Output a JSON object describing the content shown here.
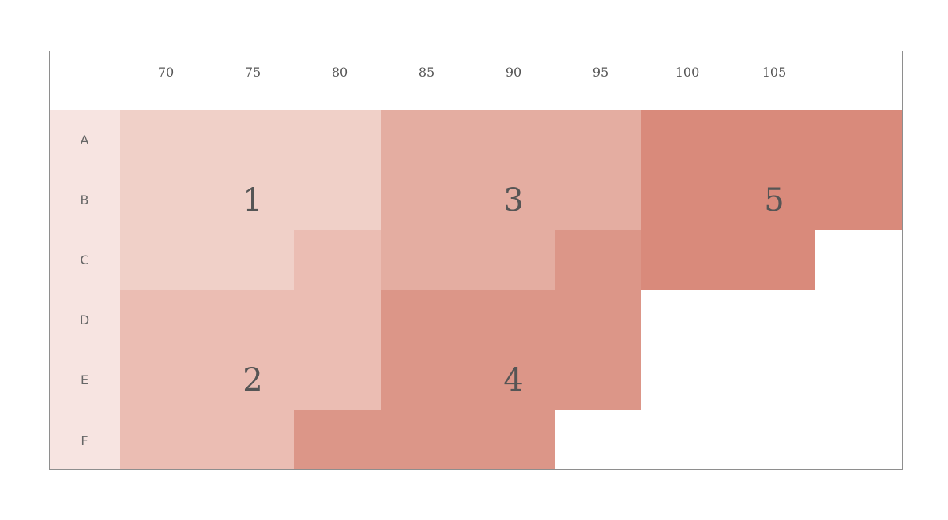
{
  "columns": [
    "70",
    "75",
    "80",
    "85",
    "90",
    "95",
    "100",
    "105"
  ],
  "rows": [
    "A",
    "B",
    "C",
    "D",
    "E",
    "F"
  ],
  "zones": [
    {
      "id": "1",
      "color": "#f0d0c8"
    },
    {
      "id": "2",
      "color": "#ebbdb3"
    },
    {
      "id": "3",
      "color": "#e4ada1"
    },
    {
      "id": "4",
      "color": "#dc9688"
    },
    {
      "id": "5",
      "color": "#d98a7b"
    }
  ],
  "cells": [
    {
      "row": "A",
      "start": 0,
      "end": 2,
      "zone": "1"
    },
    {
      "row": "A",
      "start": 3,
      "end": 5,
      "zone": "3"
    },
    {
      "row": "A",
      "start": 6,
      "end": 8,
      "zone": "5"
    },
    {
      "row": "B",
      "start": 0,
      "end": 2,
      "zone": "1"
    },
    {
      "row": "B",
      "start": 3,
      "end": 5,
      "zone": "3"
    },
    {
      "row": "B",
      "start": 6,
      "end": 8,
      "zone": "5"
    },
    {
      "row": "C",
      "start": 0,
      "end": 1,
      "zone": "1"
    },
    {
      "row": "C",
      "start": 2,
      "end": 2,
      "zone": "2"
    },
    {
      "row": "C",
      "start": 3,
      "end": 4,
      "zone": "3"
    },
    {
      "row": "C",
      "start": 5,
      "end": 5,
      "zone": "4"
    },
    {
      "row": "C",
      "start": 6,
      "end": 7,
      "zone": "5"
    },
    {
      "row": "D",
      "start": 0,
      "end": 2,
      "zone": "2"
    },
    {
      "row": "D",
      "start": 3,
      "end": 5,
      "zone": "4"
    },
    {
      "row": "E",
      "start": 0,
      "end": 2,
      "zone": "2"
    },
    {
      "row": "E",
      "start": 3,
      "end": 5,
      "zone": "4"
    },
    {
      "row": "F",
      "start": 0,
      "end": 1,
      "zone": "2"
    },
    {
      "row": "F",
      "start": 2,
      "end": 4,
      "zone": "4"
    }
  ],
  "zone_labels": [
    {
      "zone": "1",
      "row": "B",
      "col": "75"
    },
    {
      "zone": "2",
      "row": "E",
      "col": "75"
    },
    {
      "zone": "3",
      "row": "B",
      "col": "90"
    },
    {
      "zone": "4",
      "row": "E",
      "col": "90"
    },
    {
      "zone": "5",
      "row": "B",
      "col": "105"
    }
  ]
}
